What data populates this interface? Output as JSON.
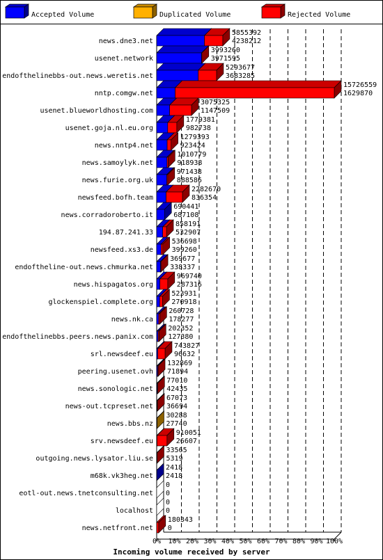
{
  "chart_data": {
    "type": "bar",
    "title": "Incoming volume received by server",
    "legend_position": "top",
    "series": [
      {
        "name": "Accepted Volume",
        "color": "#0000ff"
      },
      {
        "name": "Duplicated Volume",
        "color": "#ffb000"
      },
      {
        "name": "Rejected Volume",
        "color": "#ff0000"
      }
    ],
    "x_ticks": [
      "0%",
      "10%",
      "20%",
      "30%",
      "40%",
      "50%",
      "60%",
      "70%",
      "80%",
      "90%",
      "100%"
    ],
    "xlim": [
      0,
      100
    ],
    "grid": true,
    "rows": [
      {
        "server": "news.dne3.net",
        "total": "5855392",
        "accepted": "4238212",
        "pct_total": 37.2,
        "pct_accepted": 26.9,
        "dup": false
      },
      {
        "server": "usenet.network",
        "total": "3993260",
        "accepted": "3971595",
        "pct_total": 25.4,
        "pct_accepted": 25.3,
        "dup": false
      },
      {
        "server": "endofthelinebbs-out.news.weretis.net",
        "total": "5293677",
        "accepted": "3683285",
        "pct_total": 33.7,
        "pct_accepted": 23.4,
        "dup": false
      },
      {
        "server": "nntp.comgw.net",
        "total": "15726559",
        "accepted": "1629870",
        "pct_total": 100,
        "pct_accepted": 10.4,
        "dup": false
      },
      {
        "server": "usenet.blueworldhosting.com",
        "total": "3075325",
        "accepted": "1147509",
        "pct_total": 19.6,
        "pct_accepted": 7.3,
        "dup": false
      },
      {
        "server": "usenet.goja.nl.eu.org",
        "total": "1779381",
        "accepted": "982738",
        "pct_total": 11.3,
        "pct_accepted": 6.2,
        "dup": false
      },
      {
        "server": "news.nntp4.net",
        "total": "1279393",
        "accepted": "923424",
        "pct_total": 8.1,
        "pct_accepted": 5.9,
        "dup": false
      },
      {
        "server": "news.samoylyk.net",
        "total": "1010779",
        "accepted": "918938",
        "pct_total": 6.4,
        "pct_accepted": 5.8,
        "dup": false
      },
      {
        "server": "news.furie.org.uk",
        "total": "971438",
        "accepted": "888586",
        "pct_total": 6.2,
        "pct_accepted": 5.7,
        "dup": false
      },
      {
        "server": "newsfeed.bofh.team",
        "total": "2282670",
        "accepted": "836354",
        "pct_total": 14.5,
        "pct_accepted": 5.3,
        "dup": false
      },
      {
        "server": "news.corradoroberto.it",
        "total": "690441",
        "accepted": "687108",
        "pct_total": 4.4,
        "pct_accepted": 4.4,
        "dup": false
      },
      {
        "server": "194.87.241.33",
        "total": "858191",
        "accepted": "532907",
        "pct_total": 5.5,
        "pct_accepted": 3.4,
        "dup": false
      },
      {
        "server": "newsfeed.xs3.de",
        "total": "536698",
        "accepted": "399260",
        "pct_total": 3.4,
        "pct_accepted": 2.5,
        "dup": false
      },
      {
        "server": "endoftheline-out.news.chmurka.net",
        "total": "369677",
        "accepted": "338337",
        "pct_total": 2.4,
        "pct_accepted": 2.2,
        "dup": false
      },
      {
        "server": "news.hispagatos.org",
        "total": "969740",
        "accepted": "287316",
        "pct_total": 6.2,
        "pct_accepted": 1.8,
        "dup": false
      },
      {
        "server": "glockenspiel.complete.org",
        "total": "523931",
        "accepted": "270918",
        "pct_total": 3.3,
        "pct_accepted": 1.7,
        "dup": false
      },
      {
        "server": "news.nk.ca",
        "total": "260728",
        "accepted": "178277",
        "pct_total": 1.7,
        "pct_accepted": 1.1,
        "dup": false
      },
      {
        "server": "endofthelinebbs.peers.news.panix.com",
        "total": "202352",
        "accepted": "127380",
        "pct_total": 1.3,
        "pct_accepted": 0.8,
        "dup": false
      },
      {
        "server": "srl.newsdeef.eu",
        "total": "743827",
        "accepted": "96632",
        "pct_total": 4.7,
        "pct_accepted": 0.6,
        "dup": false
      },
      {
        "server": "peering.usenet.ovh",
        "total": "132869",
        "accepted": "71894",
        "pct_total": 0.8,
        "pct_accepted": 0.5,
        "dup": false
      },
      {
        "server": "news.sonologic.net",
        "total": "77010",
        "accepted": "42435",
        "pct_total": 0.5,
        "pct_accepted": 0.3,
        "dup": false
      },
      {
        "server": "news-out.tcpreset.net",
        "total": "67073",
        "accepted": "36694",
        "pct_total": 0.4,
        "pct_accepted": 0.2,
        "dup": false
      },
      {
        "server": "news.bbs.nz",
        "total": "30288",
        "accepted": "27740",
        "pct_total": 0.2,
        "pct_accepted": 0.2,
        "dup": true
      },
      {
        "server": "srv.newsdeef.eu",
        "total": "910051",
        "accepted": "26607",
        "pct_total": 5.8,
        "pct_accepted": 0.2,
        "dup": false
      },
      {
        "server": "outgoing.news.lysator.liu.se",
        "total": "33565",
        "accepted": "5319",
        "pct_total": 0.2,
        "pct_accepted": 0.03,
        "dup": false
      },
      {
        "server": "m68k.vk3heg.net",
        "total": "2418",
        "accepted": "2418",
        "pct_total": 0.02,
        "pct_accepted": 0.02,
        "dup": false
      },
      {
        "server": "eotl-out.news.tnetconsulting.net",
        "total": "0",
        "accepted": "0",
        "pct_total": 0,
        "pct_accepted": 0,
        "dup": false
      },
      {
        "server": "localhost",
        "total": "0",
        "accepted": "0",
        "pct_total": 0,
        "pct_accepted": 0,
        "dup": false
      },
      {
        "server": "news.netfront.net",
        "total": "180343",
        "accepted": "0",
        "pct_total": 1.1,
        "pct_accepted": 0,
        "dup": false
      }
    ]
  }
}
